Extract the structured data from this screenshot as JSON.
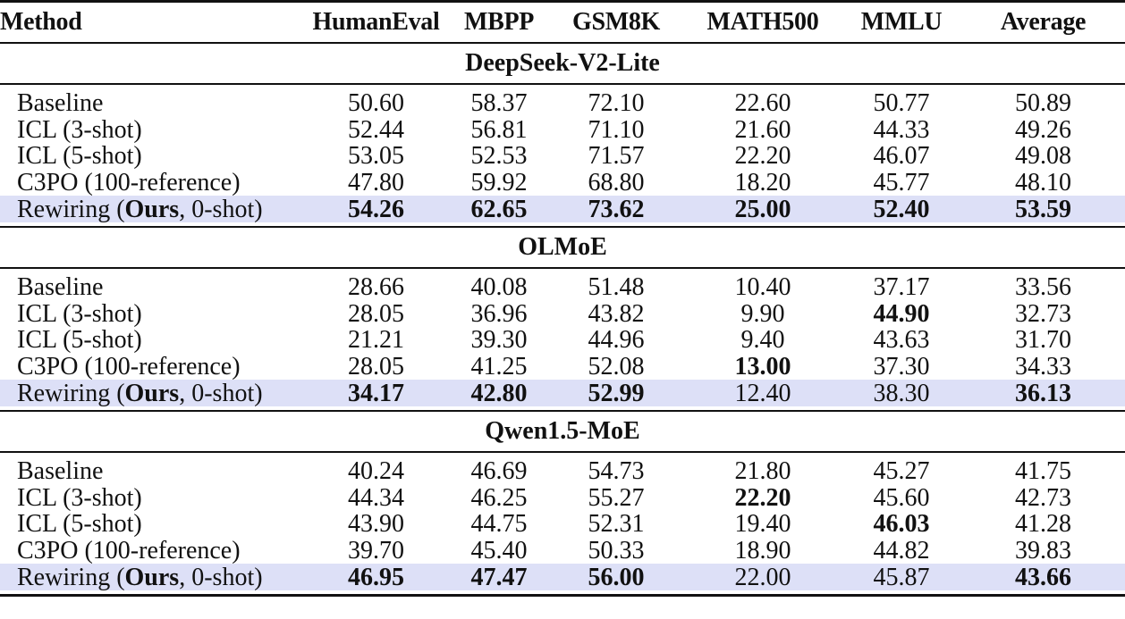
{
  "table": {
    "columns": [
      "Method",
      "HumanEval",
      "MBPP",
      "GSM8K",
      "MATH500",
      "MMLU",
      "Average"
    ],
    "highlight_color": "#dde0f7",
    "sections": [
      {
        "model": "DeepSeek-V2-Lite",
        "rows": [
          {
            "method": "Baseline",
            "values": [
              "50.60",
              "58.37",
              "72.10",
              "22.60",
              "50.77",
              "50.89"
            ],
            "bold": [
              false,
              false,
              false,
              false,
              false,
              false
            ]
          },
          {
            "method": "ICL (3-shot)",
            "values": [
              "52.44",
              "56.81",
              "71.10",
              "21.60",
              "44.33",
              "49.26"
            ],
            "bold": [
              false,
              false,
              false,
              false,
              false,
              false
            ]
          },
          {
            "method": "ICL (5-shot)",
            "values": [
              "53.05",
              "52.53",
              "71.57",
              "22.20",
              "46.07",
              "49.08"
            ],
            "bold": [
              false,
              false,
              false,
              false,
              false,
              false
            ]
          },
          {
            "method": "C3PO (100-reference)",
            "values": [
              "47.80",
              "59.92",
              "68.80",
              "18.20",
              "45.77",
              "48.10"
            ],
            "bold": [
              false,
              false,
              false,
              false,
              false,
              false
            ]
          },
          {
            "method_prefix": "Rewiring (",
            "method_bold": "Ours",
            "method_suffix": ", 0-shot)",
            "values": [
              "54.26",
              "62.65",
              "73.62",
              "25.00",
              "52.40",
              "53.59"
            ],
            "bold": [
              true,
              true,
              true,
              true,
              true,
              true
            ],
            "highlight": true
          }
        ]
      },
      {
        "model": "OLMoE",
        "rows": [
          {
            "method": "Baseline",
            "values": [
              "28.66",
              "40.08",
              "51.48",
              "10.40",
              "37.17",
              "33.56"
            ],
            "bold": [
              false,
              false,
              false,
              false,
              false,
              false
            ]
          },
          {
            "method": "ICL (3-shot)",
            "values": [
              "28.05",
              "36.96",
              "43.82",
              "9.90",
              "44.90",
              "32.73"
            ],
            "bold": [
              false,
              false,
              false,
              false,
              true,
              false
            ]
          },
          {
            "method": "ICL (5-shot)",
            "values": [
              "21.21",
              "39.30",
              "44.96",
              "9.40",
              "43.63",
              "31.70"
            ],
            "bold": [
              false,
              false,
              false,
              false,
              false,
              false
            ]
          },
          {
            "method": "C3PO (100-reference)",
            "values": [
              "28.05",
              "41.25",
              "52.08",
              "13.00",
              "37.30",
              "34.33"
            ],
            "bold": [
              false,
              false,
              false,
              true,
              false,
              false
            ]
          },
          {
            "method_prefix": "Rewiring (",
            "method_bold": "Ours",
            "method_suffix": ", 0-shot)",
            "values": [
              "34.17",
              "42.80",
              "52.99",
              "12.40",
              "38.30",
              "36.13"
            ],
            "bold": [
              true,
              true,
              true,
              false,
              false,
              true
            ],
            "highlight": true
          }
        ]
      },
      {
        "model": "Qwen1.5-MoE",
        "rows": [
          {
            "method": "Baseline",
            "values": [
              "40.24",
              "46.69",
              "54.73",
              "21.80",
              "45.27",
              "41.75"
            ],
            "bold": [
              false,
              false,
              false,
              false,
              false,
              false
            ]
          },
          {
            "method": "ICL (3-shot)",
            "values": [
              "44.34",
              "46.25",
              "55.27",
              "22.20",
              "45.60",
              "42.73"
            ],
            "bold": [
              false,
              false,
              false,
              true,
              false,
              false
            ]
          },
          {
            "method": "ICL (5-shot)",
            "values": [
              "43.90",
              "44.75",
              "52.31",
              "19.40",
              "46.03",
              "41.28"
            ],
            "bold": [
              false,
              false,
              false,
              false,
              true,
              false
            ]
          },
          {
            "method": "C3PO (100-reference)",
            "values": [
              "39.70",
              "45.40",
              "50.33",
              "18.90",
              "44.82",
              "39.83"
            ],
            "bold": [
              false,
              false,
              false,
              false,
              false,
              false
            ]
          },
          {
            "method_prefix": "Rewiring (",
            "method_bold": "Ours",
            "method_suffix": ", 0-shot)",
            "values": [
              "46.95",
              "47.47",
              "56.00",
              "22.00",
              "45.87",
              "43.66"
            ],
            "bold": [
              true,
              true,
              true,
              false,
              false,
              true
            ],
            "highlight": true
          }
        ]
      }
    ]
  }
}
